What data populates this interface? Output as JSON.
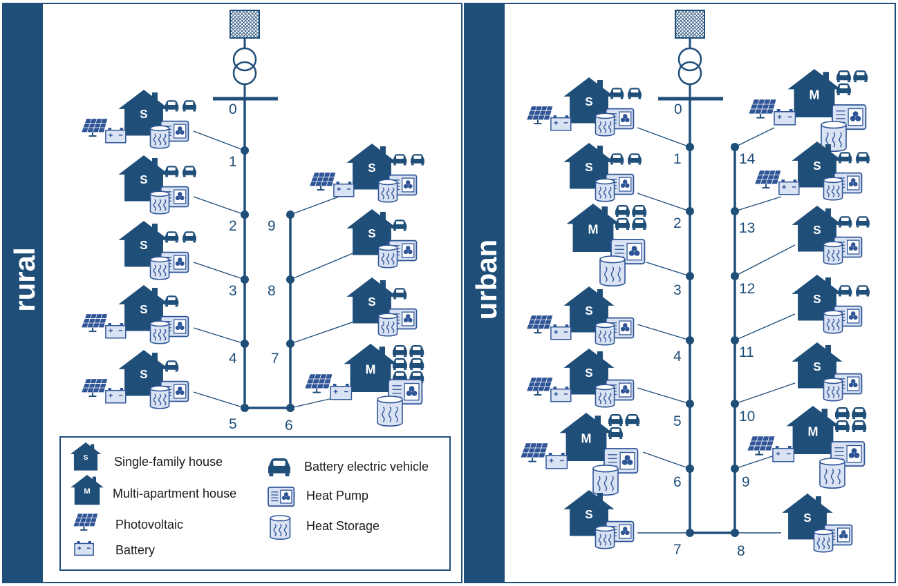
{
  "panels": [
    {
      "id": "rural",
      "label": "rural"
    },
    {
      "id": "urban",
      "label": "urban"
    }
  ],
  "house_letters": {
    "single": "S",
    "multi": "M"
  },
  "rural": {
    "nodes": [
      "0",
      "1",
      "2",
      "3",
      "4",
      "5",
      "6",
      "7",
      "8",
      "9"
    ],
    "houses": [
      {
        "node": "1",
        "type": "single",
        "evs": 2,
        "pv": true,
        "battery": true,
        "heat_pump": true,
        "heat_storage": true
      },
      {
        "node": "2",
        "type": "single",
        "evs": 2,
        "pv": false,
        "battery": false,
        "heat_pump": true,
        "heat_storage": true
      },
      {
        "node": "3",
        "type": "single",
        "evs": 2,
        "pv": false,
        "battery": false,
        "heat_pump": true,
        "heat_storage": true
      },
      {
        "node": "4",
        "type": "single",
        "evs": 1,
        "pv": true,
        "battery": true,
        "heat_pump": true,
        "heat_storage": true
      },
      {
        "node": "5",
        "type": "single",
        "evs": 1,
        "pv": true,
        "battery": true,
        "heat_pump": true,
        "heat_storage": true
      },
      {
        "node": "9",
        "type": "single",
        "evs": 2,
        "pv": true,
        "battery": true,
        "heat_pump": true,
        "heat_storage": true
      },
      {
        "node": "8",
        "type": "single",
        "evs": 1,
        "pv": false,
        "battery": false,
        "heat_pump": true,
        "heat_storage": true
      },
      {
        "node": "7",
        "type": "single",
        "evs": 1,
        "pv": false,
        "battery": false,
        "heat_pump": true,
        "heat_storage": true
      },
      {
        "node": "6",
        "type": "multi",
        "evs": 6,
        "pv": true,
        "battery": true,
        "heat_pump": true,
        "heat_storage": true
      }
    ]
  },
  "urban": {
    "nodes": [
      "0",
      "1",
      "2",
      "3",
      "4",
      "5",
      "6",
      "7",
      "8",
      "9",
      "10",
      "11",
      "12",
      "13",
      "14"
    ],
    "houses": [
      {
        "node": "1",
        "type": "single",
        "evs": 2,
        "pv": true,
        "battery": true,
        "heat_pump": true,
        "heat_storage": true
      },
      {
        "node": "2",
        "type": "single",
        "evs": 2,
        "pv": false,
        "battery": false,
        "heat_pump": true,
        "heat_storage": true
      },
      {
        "node": "3",
        "type": "multi",
        "evs": 4,
        "pv": false,
        "battery": false,
        "heat_pump": true,
        "heat_storage": true
      },
      {
        "node": "4",
        "type": "single",
        "evs": 0,
        "pv": true,
        "battery": true,
        "heat_pump": true,
        "heat_storage": true
      },
      {
        "node": "5",
        "type": "single",
        "evs": 0,
        "pv": true,
        "battery": true,
        "heat_pump": true,
        "heat_storage": true
      },
      {
        "node": "6",
        "type": "multi",
        "evs": 3,
        "pv": true,
        "battery": true,
        "heat_pump": true,
        "heat_storage": true
      },
      {
        "node": "7",
        "type": "single",
        "evs": 0,
        "pv": false,
        "battery": false,
        "heat_pump": true,
        "heat_storage": true
      },
      {
        "node": "14",
        "type": "multi",
        "evs": 3,
        "pv": true,
        "battery": true,
        "heat_pump": true,
        "heat_storage": true
      },
      {
        "node": "13",
        "type": "single",
        "evs": 2,
        "pv": true,
        "battery": true,
        "heat_pump": true,
        "heat_storage": true
      },
      {
        "node": "12",
        "type": "single",
        "evs": 2,
        "pv": false,
        "battery": false,
        "heat_pump": true,
        "heat_storage": true
      },
      {
        "node": "11",
        "type": "single",
        "evs": 2,
        "pv": false,
        "battery": false,
        "heat_pump": true,
        "heat_storage": true
      },
      {
        "node": "10",
        "type": "single",
        "evs": 0,
        "pv": false,
        "battery": false,
        "heat_pump": true,
        "heat_storage": true
      },
      {
        "node": "9",
        "type": "multi",
        "evs": 4,
        "pv": true,
        "battery": true,
        "heat_pump": true,
        "heat_storage": true
      },
      {
        "node": "8",
        "type": "single",
        "evs": 0,
        "pv": false,
        "battery": false,
        "heat_pump": true,
        "heat_storage": true
      }
    ]
  },
  "legend": {
    "single_family": "Single-family house",
    "multi_apartment": "Multi-apartment house",
    "photovoltaic": "Photovoltaic",
    "battery": "Battery",
    "bev": "Battery electric vehicle",
    "heat_pump": "Heat Pump",
    "heat_storage": "Heat Storage"
  },
  "colors": {
    "primary": "#1f4e79",
    "icon_blue": "#2f5597",
    "light_fill": "#dae3f3",
    "line": "#1f4e79"
  }
}
